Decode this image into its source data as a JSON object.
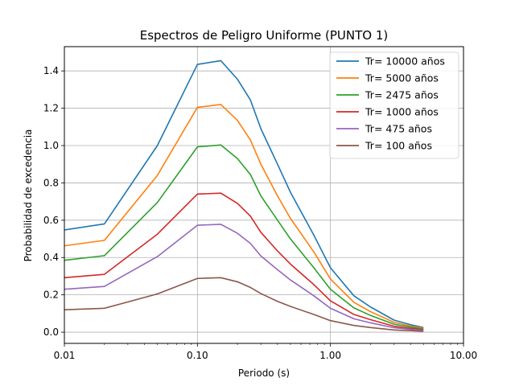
{
  "chart_data": {
    "type": "line",
    "title": "Espectros de Peligro Uniforme (PUNTO 1)",
    "xlabel": "Periodo (s)",
    "ylabel": "Probabilidad de excedencia",
    "xscale": "log",
    "xlim": [
      0.01,
      10.0
    ],
    "ylim": [
      -0.06,
      1.53
    ],
    "xticks": [
      {
        "value": 0.01,
        "label": "0.01"
      },
      {
        "value": 0.1,
        "label": "0.10"
      },
      {
        "value": 1.0,
        "label": "1.00"
      },
      {
        "value": 10.0,
        "label": "10.00"
      }
    ],
    "yticks": [
      {
        "value": 0.0,
        "label": "0.0"
      },
      {
        "value": 0.2,
        "label": "0.2"
      },
      {
        "value": 0.4,
        "label": "0.4"
      },
      {
        "value": 0.6,
        "label": "0.6"
      },
      {
        "value": 0.8,
        "label": "0.8"
      },
      {
        "value": 1.0,
        "label": "1.0"
      },
      {
        "value": 1.2,
        "label": "1.2"
      },
      {
        "value": 1.4,
        "label": "1.4"
      }
    ],
    "grid": true,
    "legend_position": "top-right",
    "x": [
      0.01,
      0.02,
      0.05,
      0.1,
      0.15,
      0.2,
      0.25,
      0.3,
      0.4,
      0.5,
      0.75,
      1.0,
      1.5,
      2.0,
      3.0,
      4.0,
      5.0
    ],
    "series": [
      {
        "name": "Tr= 10000 años",
        "color": "#1f77b4",
        "values": [
          0.548,
          0.58,
          1.0,
          1.435,
          1.455,
          1.355,
          1.245,
          1.09,
          0.9,
          0.75,
          0.52,
          0.345,
          0.195,
          0.135,
          0.065,
          0.04,
          0.025
        ]
      },
      {
        "name": "Tr= 5000 años",
        "color": "#ff7f0e",
        "values": [
          0.463,
          0.492,
          0.84,
          1.205,
          1.22,
          1.135,
          1.03,
          0.9,
          0.73,
          0.61,
          0.43,
          0.285,
          0.16,
          0.11,
          0.053,
          0.033,
          0.021
        ]
      },
      {
        "name": "Tr= 2475 años",
        "color": "#2ca02c",
        "values": [
          0.385,
          0.41,
          0.695,
          0.993,
          1.003,
          0.93,
          0.845,
          0.73,
          0.6,
          0.5,
          0.345,
          0.23,
          0.13,
          0.09,
          0.043,
          0.027,
          0.017
        ]
      },
      {
        "name": "Tr= 1000 años",
        "color": "#d62728",
        "values": [
          0.292,
          0.31,
          0.525,
          0.74,
          0.745,
          0.69,
          0.622,
          0.535,
          0.435,
          0.365,
          0.255,
          0.168,
          0.095,
          0.067,
          0.032,
          0.02,
          0.013
        ]
      },
      {
        "name": "Tr= 475 años",
        "color": "#9467bd",
        "values": [
          0.23,
          0.245,
          0.405,
          0.573,
          0.578,
          0.53,
          0.476,
          0.408,
          0.335,
          0.28,
          0.195,
          0.128,
          0.072,
          0.05,
          0.024,
          0.015,
          0.01
        ]
      },
      {
        "name": "Tr= 100 años",
        "color": "#8c564b",
        "values": [
          0.12,
          0.128,
          0.205,
          0.288,
          0.292,
          0.27,
          0.24,
          0.207,
          0.165,
          0.138,
          0.095,
          0.062,
          0.036,
          0.025,
          0.012,
          0.008,
          0.005
        ]
      }
    ]
  }
}
